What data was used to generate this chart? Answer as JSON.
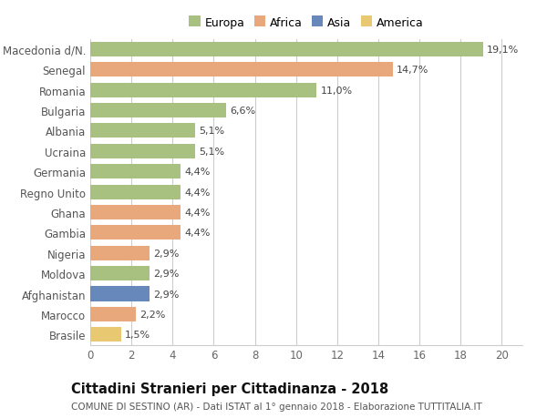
{
  "categories": [
    "Brasile",
    "Marocco",
    "Afghanistan",
    "Moldova",
    "Nigeria",
    "Gambia",
    "Ghana",
    "Regno Unito",
    "Germania",
    "Ucraina",
    "Albania",
    "Bulgaria",
    "Romania",
    "Senegal",
    "Macedonia d/N."
  ],
  "values": [
    1.5,
    2.2,
    2.9,
    2.9,
    2.9,
    4.4,
    4.4,
    4.4,
    4.4,
    5.1,
    5.1,
    6.6,
    11.0,
    14.7,
    19.1
  ],
  "continents": [
    "America",
    "Africa",
    "Asia",
    "Europa",
    "Africa",
    "Africa",
    "Africa",
    "Europa",
    "Europa",
    "Europa",
    "Europa",
    "Europa",
    "Europa",
    "Africa",
    "Europa"
  ],
  "labels": [
    "1,5%",
    "2,2%",
    "2,9%",
    "2,9%",
    "2,9%",
    "4,4%",
    "4,4%",
    "4,4%",
    "4,4%",
    "5,1%",
    "5,1%",
    "6,6%",
    "11,0%",
    "14,7%",
    "19,1%"
  ],
  "continent_colors": {
    "Europa": "#a8c080",
    "Africa": "#e8a87c",
    "Asia": "#6688bb",
    "America": "#e8c870"
  },
  "legend_order": [
    "Europa",
    "Africa",
    "Asia",
    "America"
  ],
  "xlim": [
    0,
    21
  ],
  "xticks": [
    0,
    2,
    4,
    6,
    8,
    10,
    12,
    14,
    16,
    18,
    20
  ],
  "title": "Cittadini Stranieri per Cittadinanza - 2018",
  "subtitle": "COMUNE DI SESTINO (AR) - Dati ISTAT al 1° gennaio 2018 - Elaborazione TUTTITALIA.IT",
  "bar_height": 0.72,
  "background_color": "#ffffff",
  "grid_color": "#cccccc",
  "label_fontsize": 8.0,
  "ytick_fontsize": 8.5,
  "xtick_fontsize": 8.5,
  "title_fontsize": 10.5,
  "subtitle_fontsize": 7.5,
  "legend_fontsize": 9.0
}
